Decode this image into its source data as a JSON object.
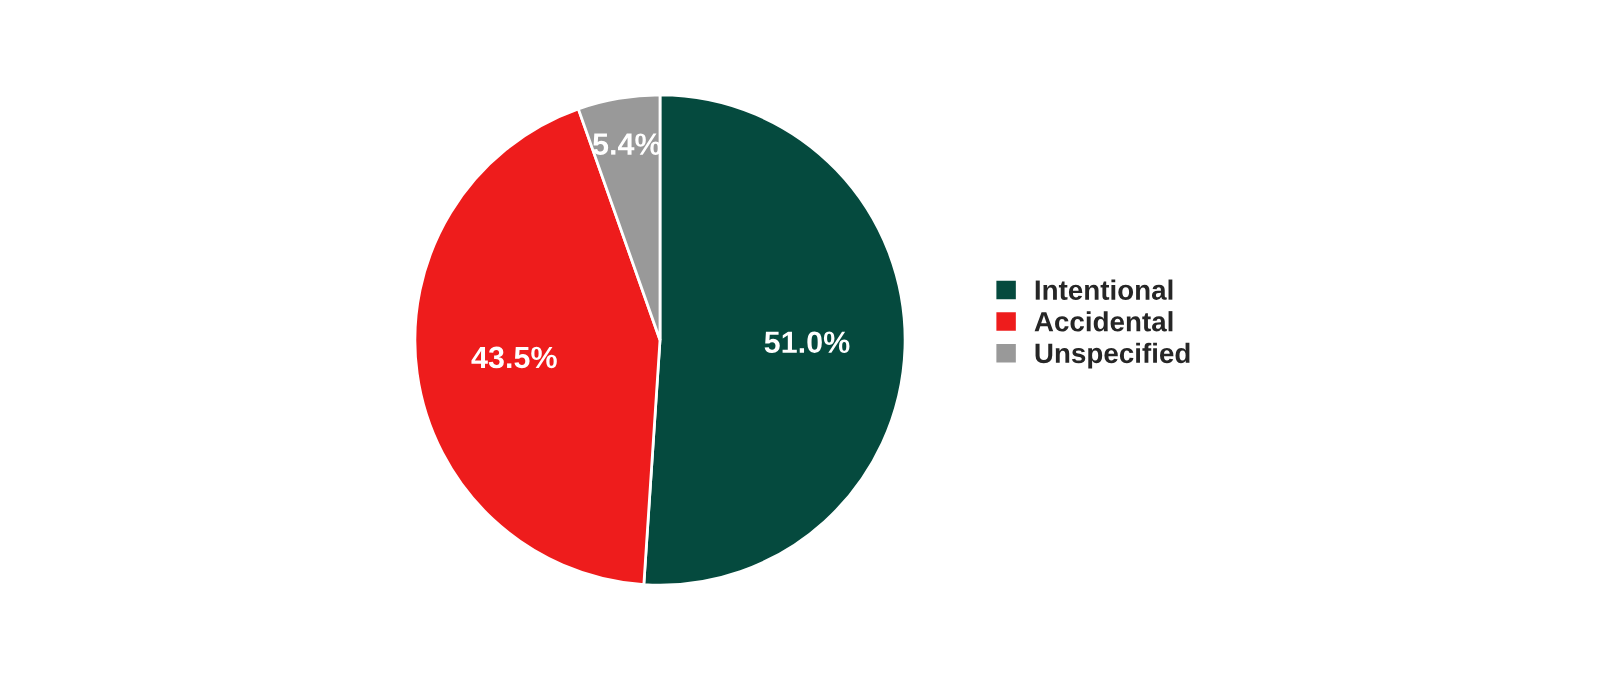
{
  "chart_data": {
    "type": "pie",
    "categories": [
      "Intentional",
      "Accidental",
      "Unspecified"
    ],
    "values": [
      51.0,
      43.5,
      5.4
    ],
    "value_labels": [
      "51.0%",
      "43.5%",
      "5.4%"
    ],
    "colors": [
      "#054a3e",
      "#ee1c1c",
      "#999999"
    ],
    "legend": "right"
  }
}
